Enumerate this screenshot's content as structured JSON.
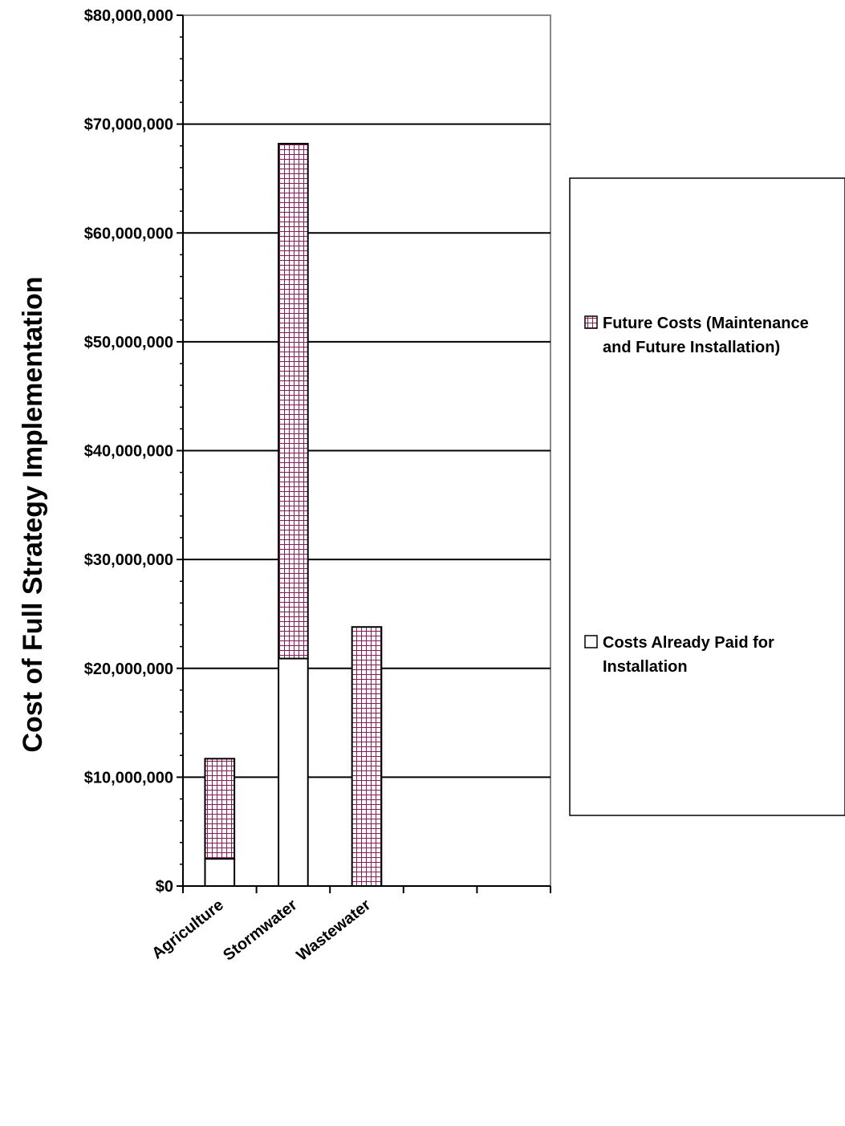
{
  "chart_data": {
    "type": "bar",
    "stacked": true,
    "categories": [
      "Agriculture",
      "Stormwater",
      "Wastewater",
      "",
      ""
    ],
    "series": [
      {
        "name": "Costs Already Paid for Installation",
        "values": [
          2500000,
          20900000,
          0,
          0,
          0
        ],
        "fill": "#ffffff",
        "pattern": "none"
      },
      {
        "name": "Future Costs (Maintenance and Future Installation)",
        "values": [
          9200000,
          47300000,
          23800000,
          0,
          0
        ],
        "fill": "#ffffff",
        "pattern": "grid",
        "pattern_color": "#8b1a5c"
      }
    ],
    "ylabel": "Cost of Full Strategy Implementation",
    "xlabel": "",
    "ylim": [
      0,
      80000000
    ],
    "y_tick_labels": [
      "$0",
      "$10,000,000",
      "$20,000,000",
      "$30,000,000",
      "$40,000,000",
      "$50,000,000",
      "$60,000,000",
      "$70,000,000",
      "$80,000,000"
    ],
    "grid": true,
    "legend": {
      "position": "right",
      "entries": [
        {
          "label_line1": "Future Costs (Maintenance",
          "label_line2": "and Future Installation)"
        },
        {
          "label_line1": "Costs Already Paid for",
          "label_line2": "Installation"
        }
      ]
    }
  }
}
